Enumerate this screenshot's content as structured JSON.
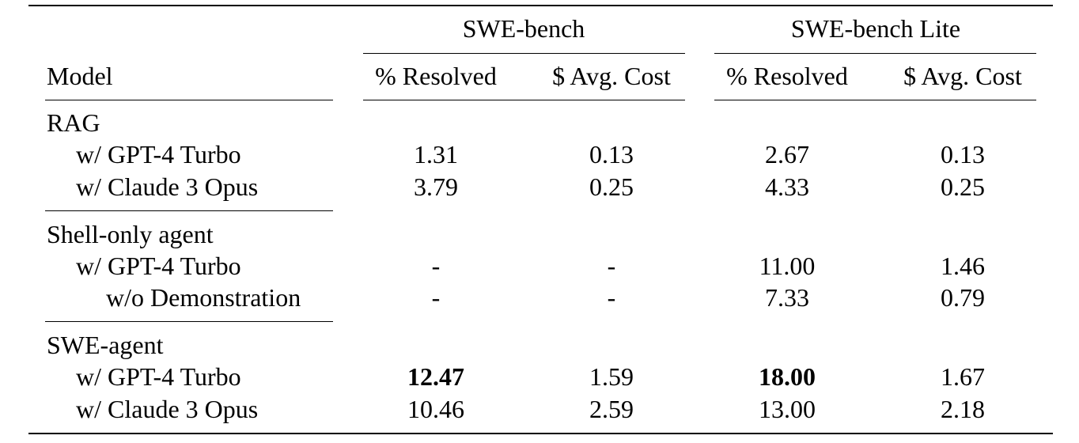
{
  "table": {
    "header": {
      "groups": [
        "SWE-bench",
        "SWE-bench Lite"
      ],
      "model": "Model",
      "columns": [
        "% Resolved",
        "$ Avg. Cost",
        "% Resolved",
        "$ Avg. Cost"
      ]
    },
    "sections": [
      {
        "title": "RAG",
        "rows": [
          {
            "label": "w/ GPT-4 Turbo",
            "values": [
              "1.31",
              "0.13",
              "2.67",
              "0.13"
            ]
          },
          {
            "label": "w/ Claude 3 Opus",
            "values": [
              "3.79",
              "0.25",
              "4.33",
              "0.25"
            ]
          }
        ]
      },
      {
        "title": "Shell-only agent",
        "rows": [
          {
            "label": "w/ GPT-4 Turbo",
            "values": [
              "-",
              "-",
              "11.00",
              "1.46"
            ]
          },
          {
            "label": "w/o Demonstration",
            "values": [
              "-",
              "-",
              "7.33",
              "0.79"
            ]
          }
        ]
      },
      {
        "title": "SWE-agent",
        "rows": [
          {
            "label": "w/ GPT-4 Turbo",
            "values": [
              "12.47",
              "1.59",
              "18.00",
              "1.67"
            ],
            "bold": [
              0,
              2
            ]
          },
          {
            "label": "w/ Claude 3 Opus",
            "values": [
              "10.46",
              "2.59",
              "13.00",
              "2.18"
            ]
          }
        ]
      }
    ]
  }
}
